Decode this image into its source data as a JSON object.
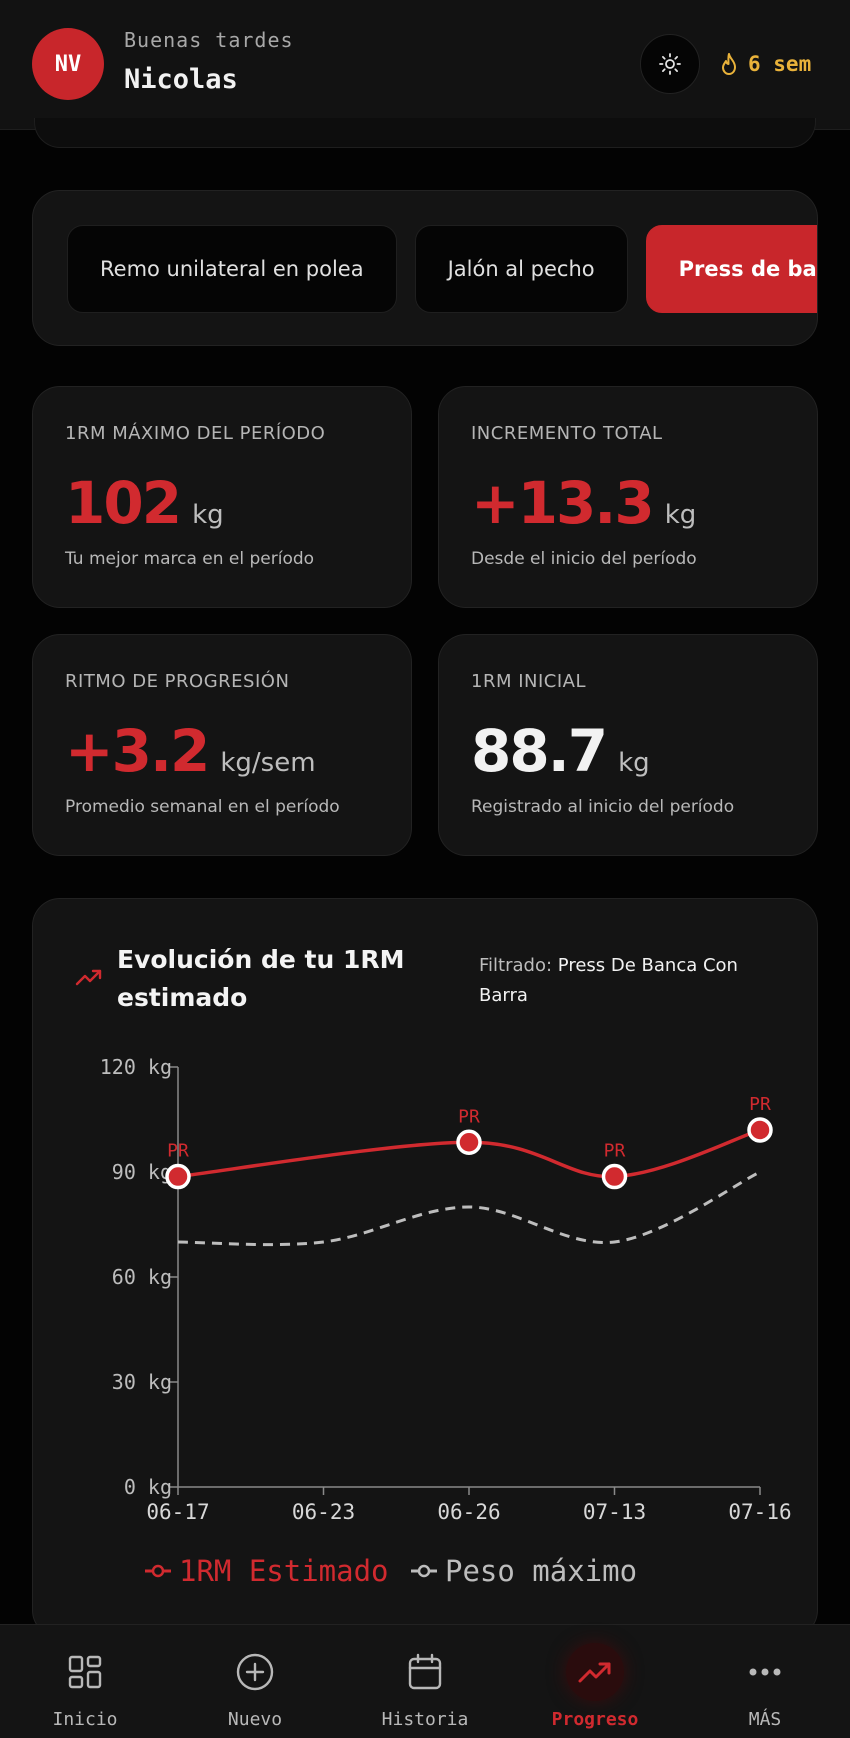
{
  "header": {
    "avatar_initials": "NV",
    "greeting": "Buenas tardes",
    "user_name": "Nicolas",
    "streak": "6 sem",
    "theme_icon": "sun-icon",
    "streak_icon": "flame-icon"
  },
  "exercises": [
    {
      "label": "Remo unilateral en polea",
      "active": false
    },
    {
      "label": "Jalón al pecho",
      "active": false
    },
    {
      "label": "Press de banca con barra",
      "active": true
    }
  ],
  "stats": {
    "max_1rm": {
      "label": "1RM MÁXIMO DEL PERÍODO",
      "value": "102",
      "unit": "kg",
      "sub": "Tu mejor marca en el período"
    },
    "increment": {
      "label": "INCREMENTO TOTAL",
      "value": "+13.3",
      "unit": "kg",
      "sub": "Desde el inicio del período"
    },
    "rate": {
      "label": "RITMO DE PROGRESIÓN",
      "value": "+3.2",
      "unit": "kg/sem",
      "sub": "Promedio semanal en el período"
    },
    "initial": {
      "label": "1RM INICIAL",
      "value": "88.7",
      "unit": "kg",
      "sub": "Registrado al inicio del período"
    }
  },
  "chart_card": {
    "title": "Evolución de tu 1RM estimado",
    "filter_label": "Filtrado:",
    "filter_value": "Press De Banca Con Barra"
  },
  "chart_data": {
    "type": "line",
    "categories": [
      "06-17",
      "06-23",
      "06-26",
      "07-13",
      "07-16"
    ],
    "y_ticks": [
      "0 kg",
      "30 kg",
      "60 kg",
      "90 kg",
      "120 kg"
    ],
    "ylim": [
      0,
      120
    ],
    "grid": false,
    "legend": "bottom",
    "series": [
      {
        "name": "1RM Estimado",
        "color": "#d12a2f",
        "style": "solid",
        "points": [
          {
            "x": "06-17",
            "y": 88.7,
            "label": "PR"
          },
          {
            "x": "06-26",
            "y": 98.5,
            "label": "PR"
          },
          {
            "x": "07-13",
            "y": 88.7,
            "label": "PR"
          },
          {
            "x": "07-16",
            "y": 102,
            "label": "PR"
          }
        ]
      },
      {
        "name": "Peso máximo",
        "color": "#bdbdbd",
        "style": "dashed",
        "points": [
          {
            "x": "06-17",
            "y": 70
          },
          {
            "x": "06-23",
            "y": 70
          },
          {
            "x": "06-26",
            "y": 80
          },
          {
            "x": "07-13",
            "y": 70
          },
          {
            "x": "07-16",
            "y": 90
          }
        ]
      }
    ]
  },
  "nav": [
    {
      "label": "Inicio",
      "icon": "grid-icon",
      "active": false
    },
    {
      "label": "Nuevo",
      "icon": "plus-circle-icon",
      "active": false
    },
    {
      "label": "Historia",
      "icon": "calendar-icon",
      "active": false
    },
    {
      "label": "Progreso",
      "icon": "trending-up-icon",
      "active": true
    },
    {
      "label": "MÁS",
      "icon": "more-dots-icon",
      "active": false
    }
  ],
  "colors": {
    "accent": "#c8262b",
    "streak": "#e9b23a",
    "card": "#141414"
  }
}
